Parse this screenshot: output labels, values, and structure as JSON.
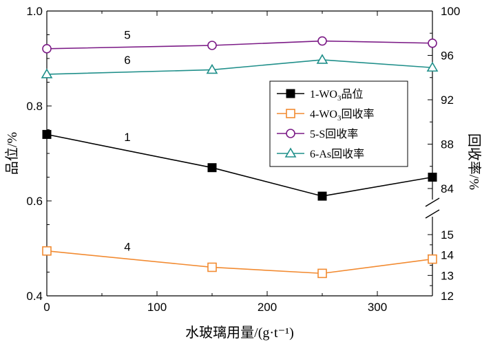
{
  "chart_data": {
    "type": "line",
    "x": [
      0,
      150,
      250,
      350
    ],
    "xlabel": "水玻璃用量/(g·t⁻¹)",
    "xlim": [
      0,
      350
    ],
    "xticks": [
      0,
      100,
      200,
      300
    ],
    "ylabel_left": "品位/%",
    "ylabel_right": "回收率/%",
    "ylim_left": [
      0.4,
      1.0
    ],
    "yticks_left": [
      "0.4",
      "0.6",
      "0.8",
      "1.0"
    ],
    "yticks_right_upper": [
      "84",
      "88",
      "92",
      "96",
      "100"
    ],
    "yticks_right_lower": [
      "12",
      "13",
      "14",
      "15"
    ],
    "right_axis_break": true,
    "series": [
      {
        "id": "s1",
        "name": "1-WO3品位",
        "curve_label": "1",
        "axis": "left",
        "marker": "filled-square",
        "color": "#000000",
        "values": [
          0.74,
          0.67,
          0.61,
          0.65
        ]
      },
      {
        "id": "s4",
        "name": "4-WO3回收率",
        "curve_label": "4",
        "axis": "right-lower",
        "marker": "open-square",
        "color": "#f28a30",
        "values": [
          14.2,
          13.4,
          13.1,
          13.8
        ]
      },
      {
        "id": "s5",
        "name": "5-S回收率",
        "curve_label": "5",
        "axis": "right-upper",
        "marker": "open-circle",
        "color": "#7b1a86",
        "values": [
          96.6,
          96.9,
          97.3,
          97.1
        ]
      },
      {
        "id": "s6",
        "name": "6-As回收率",
        "curve_label": "6",
        "axis": "right-upper",
        "marker": "open-triangle",
        "color": "#1f8f8a",
        "values": [
          94.3,
          94.7,
          95.6,
          94.9
        ]
      }
    ],
    "legend": {
      "placement": "right-middle",
      "entries": [
        {
          "series": "s1",
          "pre": "1-WO",
          "sub": "3",
          "post": "品位"
        },
        {
          "series": "s4",
          "pre": "4-WO",
          "sub": "3",
          "post": "回收率"
        },
        {
          "series": "s5",
          "pre": "5-S回收率",
          "sub": "",
          "post": ""
        },
        {
          "series": "s6",
          "pre": "6-As回收率",
          "sub": "",
          "post": ""
        }
      ]
    }
  }
}
